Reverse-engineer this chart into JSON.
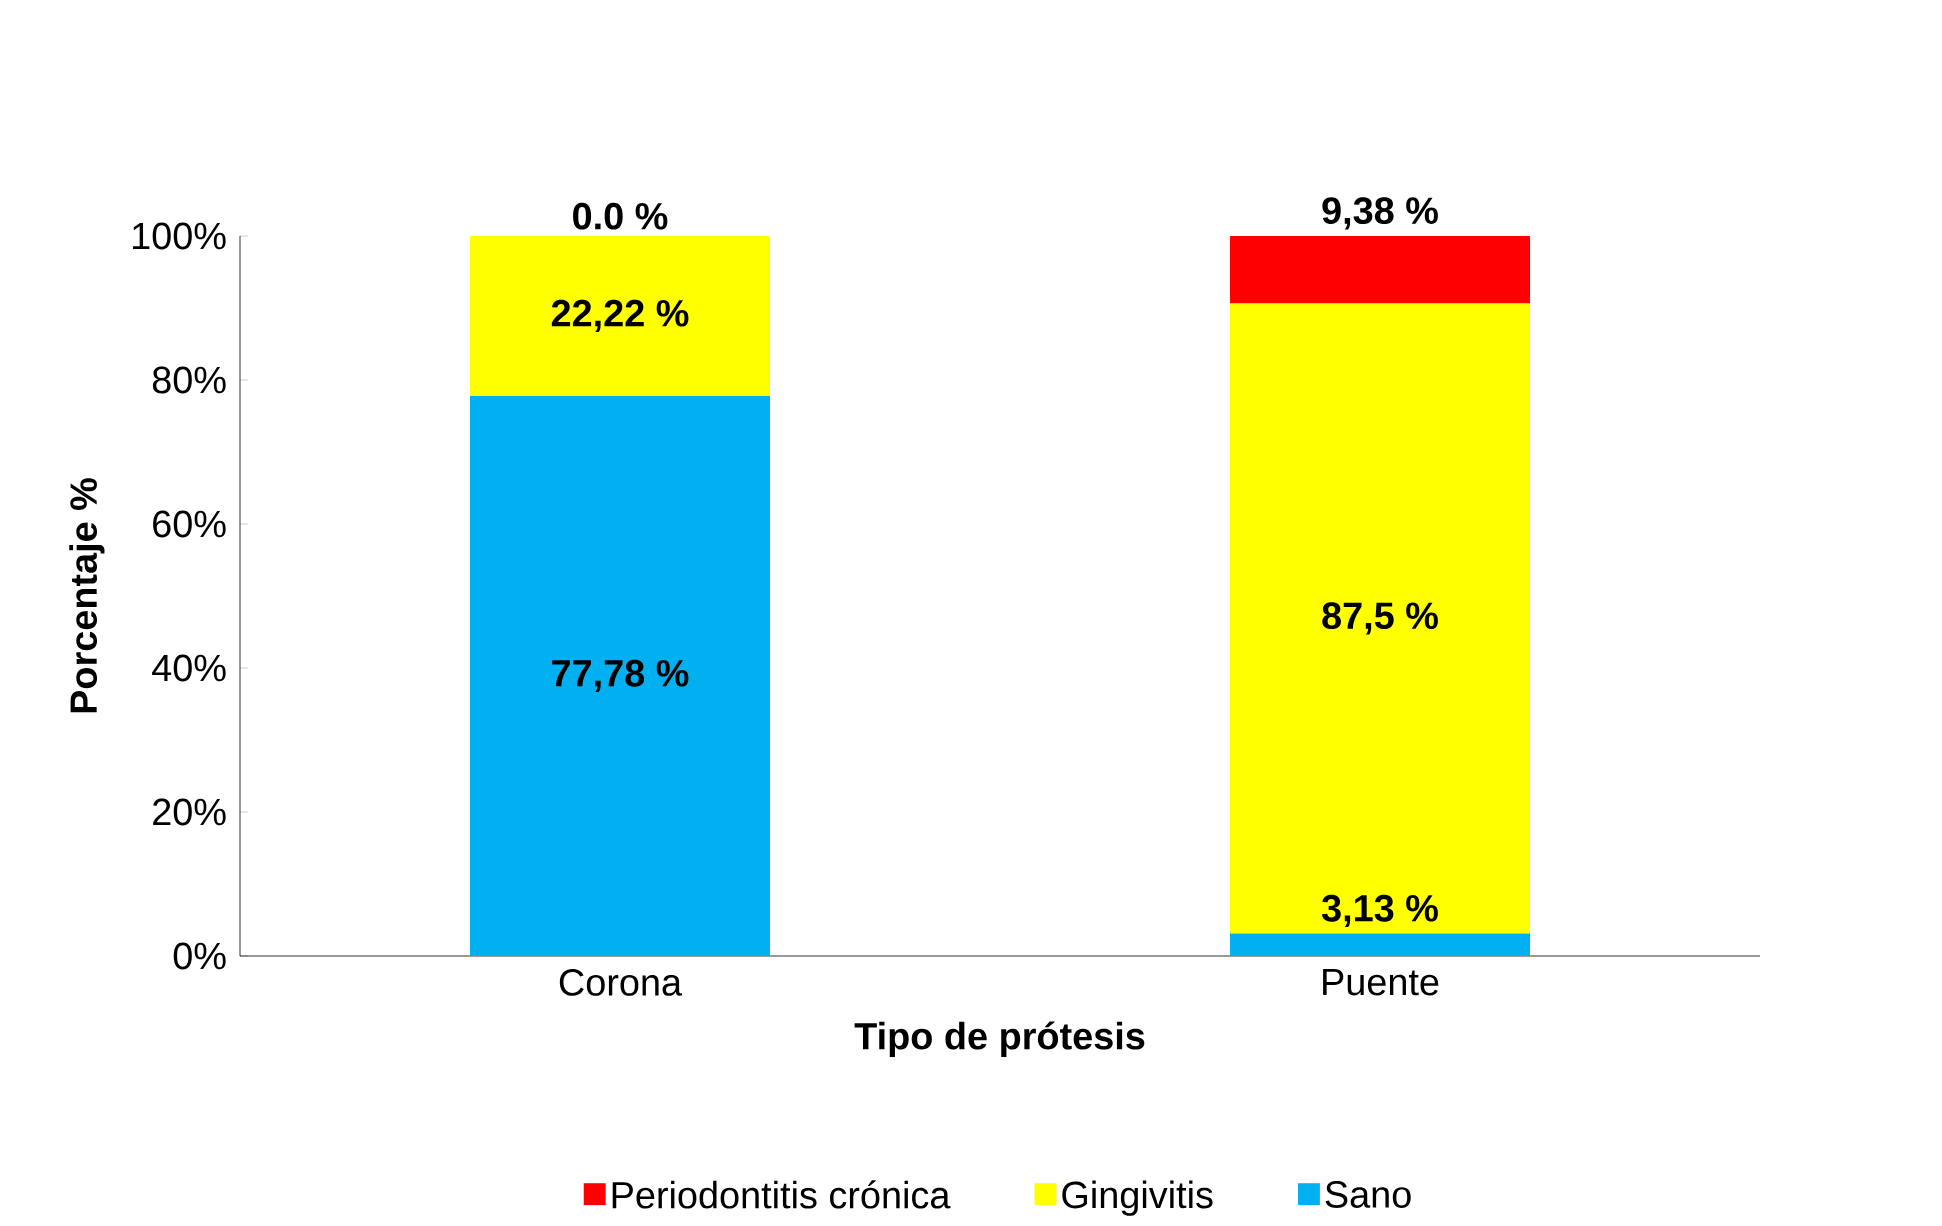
{
  "chart_data": {
    "type": "bar",
    "stacked": true,
    "xlabel": "Tipo de prótesis",
    "ylabel": "Porcentaje %",
    "categories": [
      "Corona",
      "Puente"
    ],
    "series": [
      {
        "name": "Sano",
        "color": "#00b0f0",
        "values": [
          77.78,
          3.13
        ],
        "value_labels": [
          "77,78 %",
          "3,13 %"
        ]
      },
      {
        "name": "Gingivitis",
        "color": "#ffff00",
        "values": [
          22.22,
          87.5
        ],
        "value_labels": [
          "22,22 %",
          "87,5 %"
        ]
      },
      {
        "name": "Periodontitis crónica",
        "color": "#ff0000",
        "values": [
          0.0,
          9.38
        ],
        "value_labels": [
          "0.0 %",
          "9,38 %"
        ]
      }
    ],
    "ylim": [
      0,
      100
    ],
    "yticks": [
      {
        "value": 0,
        "label": "0%"
      },
      {
        "value": 20,
        "label": "20%"
      },
      {
        "value": 40,
        "label": "40%"
      },
      {
        "value": 60,
        "label": "60%"
      },
      {
        "value": 80,
        "label": "80%"
      },
      {
        "value": 100,
        "label": "100%"
      }
    ],
    "legend": "bottom"
  }
}
